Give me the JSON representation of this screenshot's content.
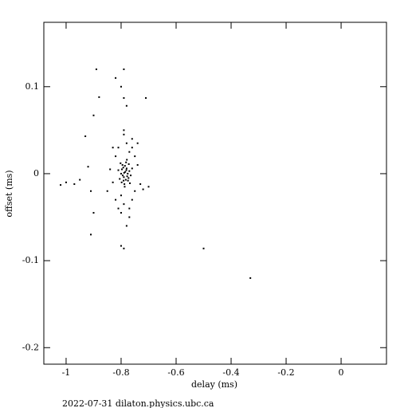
{
  "chart_data": {
    "type": "scatter",
    "xlabel": "delay (ms)",
    "ylabel": "offset (ms)",
    "footer": "2022-07-31 dilaton.physics.ubc.ca",
    "color": "#000000",
    "xlim": [
      -1.081,
      0.165
    ],
    "ylim": [
      -0.219,
      0.174
    ],
    "xticks": [
      -1,
      -0.8,
      -0.6,
      -0.4,
      -0.2,
      0
    ],
    "yticks": [
      -0.2,
      -0.1,
      0,
      0.1
    ],
    "x": [
      -0.89,
      -0.79,
      -0.82,
      -0.71,
      -0.88,
      -0.79,
      -0.78,
      -0.8,
      -0.93,
      -0.9,
      -1.02,
      -1.0,
      -0.97,
      -0.95,
      -0.91,
      -0.5,
      -0.33,
      -0.8,
      -0.79,
      -0.92,
      -0.9,
      -0.91,
      -0.7,
      -0.78,
      -0.77,
      -0.81,
      -0.76,
      -0.74,
      -0.79,
      -0.83,
      -0.785,
      -0.79,
      -0.78,
      -0.795,
      -0.775,
      -0.8,
      -0.77,
      -0.788,
      -0.782,
      -0.805,
      -0.765,
      -0.792,
      -0.778,
      -0.786,
      -0.798,
      -0.772,
      -0.81,
      -0.76,
      -0.783,
      -0.789,
      -0.776,
      -0.794,
      -0.781,
      -0.768,
      -0.802,
      -0.787,
      -0.779,
      -0.797,
      -0.773,
      -0.791,
      -0.82,
      -0.75,
      -0.8,
      -0.77,
      -0.83,
      -0.74,
      -0.76,
      -0.81,
      -0.79,
      -0.78,
      -0.73,
      -0.84,
      -0.72,
      -0.85,
      -0.75,
      -0.79,
      -0.8,
      -0.77,
      -0.82,
      -0.76
    ],
    "values": [
      0.12,
      0.12,
      0.11,
      0.087,
      0.088,
      0.087,
      0.078,
      0.1,
      0.043,
      0.067,
      -0.013,
      -0.01,
      -0.012,
      -0.007,
      -0.07,
      -0.086,
      -0.12,
      -0.083,
      -0.086,
      0.008,
      -0.045,
      -0.02,
      -0.015,
      -0.06,
      -0.05,
      -0.04,
      0.04,
      0.035,
      0.05,
      0.03,
      0.002,
      -0.004,
      0.006,
      0.01,
      -0.008,
      0.0,
      0.003,
      -0.012,
      0.013,
      -0.006,
      -0.002,
      0.007,
      -0.003,
      0.009,
      -0.01,
      0.011,
      0.004,
      0.006,
      -0.007,
      0.001,
      0.0,
      -0.002,
      0.004,
      -0.011,
      0.012,
      -0.015,
      0.016,
      0.005,
      -0.005,
      -0.008,
      0.02,
      -0.02,
      -0.025,
      0.025,
      -0.01,
      0.01,
      -0.03,
      0.03,
      -0.035,
      0.035,
      -0.012,
      0.005,
      -0.018,
      -0.02,
      0.02,
      0.045,
      -0.045,
      -0.04,
      -0.03,
      0.03
    ]
  }
}
